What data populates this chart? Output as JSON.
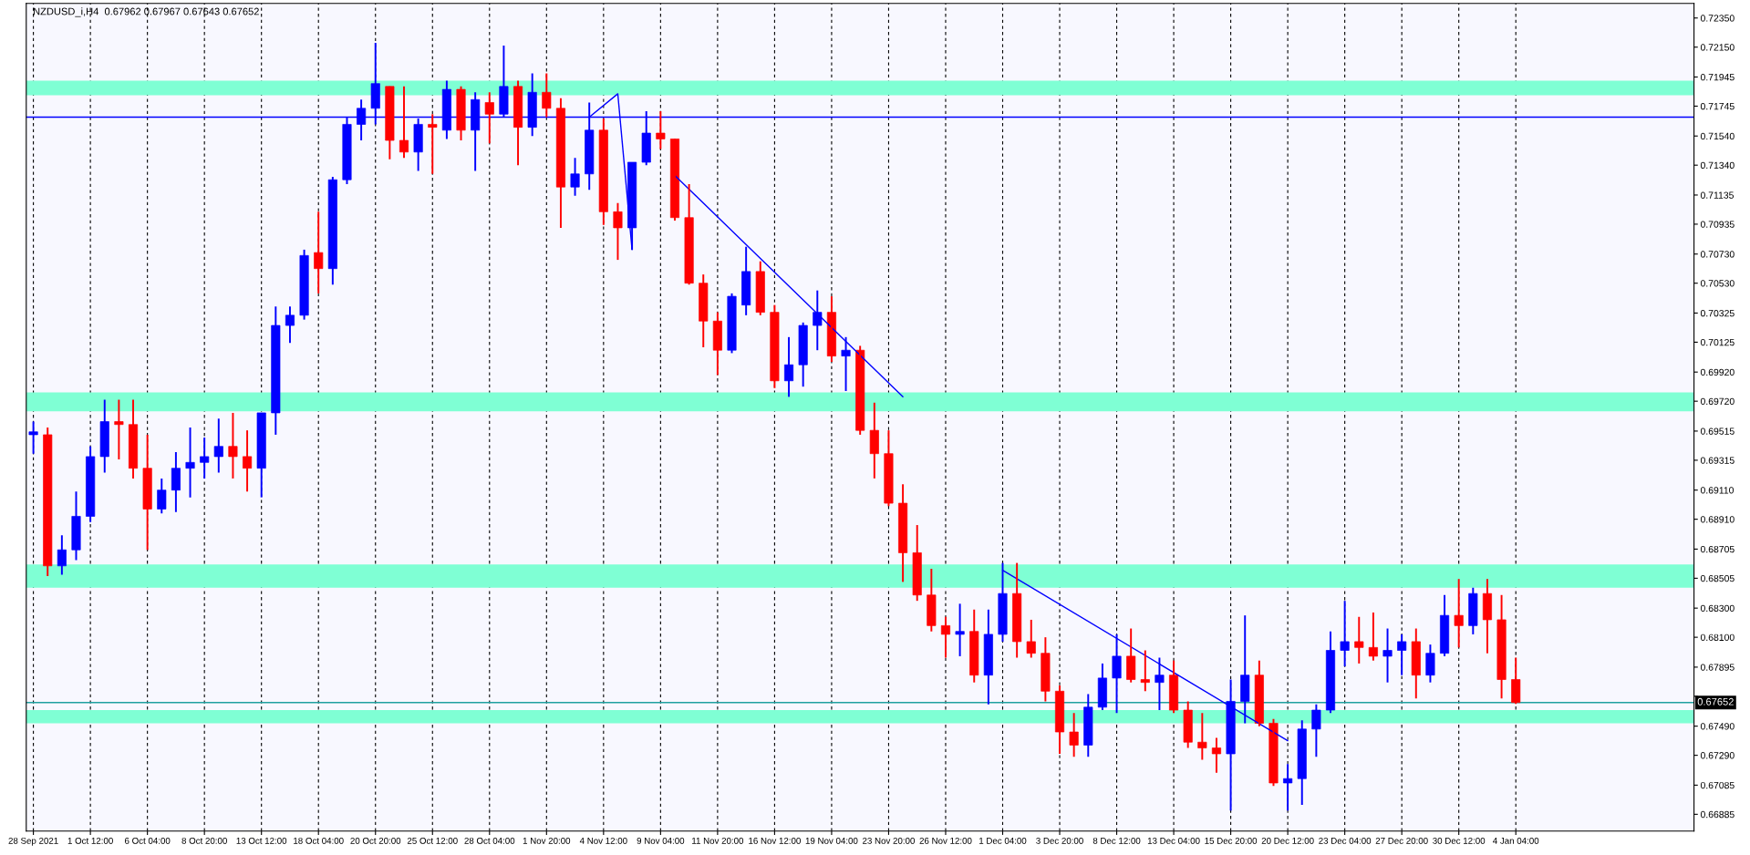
{
  "chart_data": {
    "type": "candlestick",
    "title": "NZDUSD_i,H4  0.67962 0.67967 0.67643 0.67652",
    "categories": [
      "28 Sep 2021",
      null,
      null,
      null,
      "1 Oct 12:00",
      null,
      null,
      null,
      "6 Oct 04:00",
      null,
      null,
      null,
      "8 Oct 20:00",
      null,
      null,
      null,
      "13 Oct 12:00",
      null,
      null,
      null,
      "18 Oct 04:00",
      null,
      null,
      null,
      "20 Oct 20:00",
      null,
      null,
      null,
      "25 Oct 12:00",
      null,
      null,
      null,
      "28 Oct 04:00",
      null,
      null,
      null,
      "1 Nov 20:00",
      null,
      null,
      null,
      "4 Nov 12:00",
      null,
      null,
      null,
      "9 Nov 04:00",
      null,
      null,
      null,
      "11 Nov 20:00",
      null,
      null,
      null,
      "16 Nov 12:00",
      null,
      null,
      null,
      "19 Nov 04:00",
      null,
      null,
      null,
      "23 Nov 20:00",
      null,
      null,
      null,
      "26 Nov 12:00",
      null,
      null,
      null,
      "1 Dec 04:00",
      null,
      null,
      null,
      "3 Dec 20:00",
      null,
      null,
      null,
      "8 Dec 12:00",
      null,
      null,
      null,
      "13 Dec 04:00",
      null,
      null,
      null,
      "15 Dec 20:00",
      null,
      null,
      null,
      "20 Dec 12:00",
      null,
      null,
      null,
      "23 Dec 04:00",
      null,
      null,
      null,
      "27 Dec 20:00",
      null,
      null,
      null,
      "30 Dec 12:00",
      null,
      null,
      null,
      "4 Jan 04:00",
      null,
      null,
      null,
      null,
      null,
      null,
      null,
      null,
      null,
      null,
      null,
      null
    ],
    "ohlc": [
      [
        0.6949,
        0.6958,
        0.6936,
        0.6951
      ],
      [
        0.6949,
        0.6954,
        0.6852,
        0.6859
      ],
      [
        0.6859,
        0.688,
        0.6853,
        0.687
      ],
      [
        0.687,
        0.691,
        0.6863,
        0.6893
      ],
      [
        0.6893,
        0.6941,
        0.6889,
        0.6934
      ],
      [
        0.6934,
        0.6973,
        0.6923,
        0.6958
      ],
      [
        0.6958,
        0.6973,
        0.6932,
        0.6956
      ],
      [
        0.6956,
        0.6973,
        0.6919,
        0.6926
      ],
      [
        0.6926,
        0.6949,
        0.687,
        0.6898
      ],
      [
        0.6898,
        0.6919,
        0.6895,
        0.6911
      ],
      [
        0.6911,
        0.6937,
        0.6896,
        0.6926
      ],
      [
        0.6926,
        0.6954,
        0.6906,
        0.693
      ],
      [
        0.693,
        0.6947,
        0.6919,
        0.6934
      ],
      [
        0.6934,
        0.696,
        0.6923,
        0.6941
      ],
      [
        0.6941,
        0.6964,
        0.6919,
        0.6934
      ],
      [
        0.6934,
        0.6952,
        0.691,
        0.6926
      ],
      [
        0.6926,
        0.6964,
        0.6906,
        0.6964
      ],
      [
        0.6964,
        0.7037,
        0.6949,
        0.7024
      ],
      [
        0.7024,
        0.7037,
        0.7012,
        0.7031
      ],
      [
        0.7031,
        0.7076,
        0.7028,
        0.7072
      ],
      [
        0.7074,
        0.7102,
        0.7046,
        0.7063
      ],
      [
        0.7063,
        0.7126,
        0.7052,
        0.7124
      ],
      [
        0.7124,
        0.7167,
        0.7121,
        0.7162
      ],
      [
        0.7162,
        0.7179,
        0.7151,
        0.7173
      ],
      [
        0.7173,
        0.7218,
        0.7162,
        0.719
      ],
      [
        0.7188,
        0.7188,
        0.7138,
        0.7151
      ],
      [
        0.7151,
        0.7188,
        0.7139,
        0.7143
      ],
      [
        0.7143,
        0.7166,
        0.713,
        0.7162
      ],
      [
        0.7162,
        0.7169,
        0.7128,
        0.716
      ],
      [
        0.7158,
        0.7192,
        0.7152,
        0.7186
      ],
      [
        0.7186,
        0.7188,
        0.7151,
        0.7158
      ],
      [
        0.7158,
        0.7184,
        0.713,
        0.7179
      ],
      [
        0.7177,
        0.7184,
        0.7149,
        0.7169
      ],
      [
        0.7169,
        0.7216,
        0.7167,
        0.7188
      ],
      [
        0.7188,
        0.7192,
        0.7134,
        0.716
      ],
      [
        0.716,
        0.7197,
        0.7154,
        0.7184
      ],
      [
        0.7184,
        0.7197,
        0.7167,
        0.7173
      ],
      [
        0.7173,
        0.718,
        0.7091,
        0.7119
      ],
      [
        0.7119,
        0.7139,
        0.7113,
        0.7128
      ],
      [
        0.7128,
        0.7177,
        0.7117,
        0.7158
      ],
      [
        0.7158,
        0.7166,
        0.7093,
        0.7102
      ],
      [
        0.7102,
        0.7108,
        0.7069,
        0.7091
      ],
      [
        0.7091,
        0.7136,
        0.7076,
        0.7136
      ],
      [
        0.7136,
        0.7171,
        0.7134,
        0.7156
      ],
      [
        0.7156,
        0.7171,
        0.7145,
        0.7152
      ],
      [
        0.7152,
        0.7152,
        0.7096,
        0.7098
      ],
      [
        0.7098,
        0.7121,
        0.7052,
        0.7053
      ],
      [
        0.7053,
        0.7059,
        0.7009,
        0.7027
      ],
      [
        0.7027,
        0.7033,
        0.699,
        0.7007
      ],
      [
        0.7007,
        0.7046,
        0.7005,
        0.7044
      ],
      [
        0.7038,
        0.7078,
        0.7031,
        0.7061
      ],
      [
        0.7061,
        0.7068,
        0.7031,
        0.7033
      ],
      [
        0.7033,
        0.7038,
        0.6981,
        0.6986
      ],
      [
        0.6986,
        0.7016,
        0.6975,
        0.6997
      ],
      [
        0.6997,
        0.7026,
        0.6982,
        0.7024
      ],
      [
        0.7024,
        0.7048,
        0.7007,
        0.7033
      ],
      [
        0.7033,
        0.7044,
        0.6999,
        0.7003
      ],
      [
        0.7003,
        0.7016,
        0.6979,
        0.7007
      ],
      [
        0.7007,
        0.701,
        0.6949,
        0.6952
      ],
      [
        0.6952,
        0.6971,
        0.6919,
        0.6936
      ],
      [
        0.6936,
        0.6952,
        0.69,
        0.6902
      ],
      [
        0.6902,
        0.6915,
        0.6848,
        0.6868
      ],
      [
        0.6868,
        0.6887,
        0.6835,
        0.6839
      ],
      [
        0.6839,
        0.6857,
        0.6814,
        0.6818
      ],
      [
        0.6818,
        0.6824,
        0.6796,
        0.6812
      ],
      [
        0.6812,
        0.6833,
        0.6797,
        0.6814
      ],
      [
        0.6814,
        0.6829,
        0.6779,
        0.6784
      ],
      [
        0.6784,
        0.6829,
        0.6764,
        0.6812
      ],
      [
        0.6812,
        0.6861,
        0.6807,
        0.684
      ],
      [
        0.684,
        0.6861,
        0.6796,
        0.6807
      ],
      [
        0.6807,
        0.6822,
        0.6796,
        0.6799
      ],
      [
        0.6799,
        0.681,
        0.6766,
        0.6773
      ],
      [
        0.6773,
        0.6777,
        0.673,
        0.6745
      ],
      [
        0.6745,
        0.6758,
        0.6728,
        0.6736
      ],
      [
        0.6736,
        0.6771,
        0.6728,
        0.6762
      ],
      [
        0.6762,
        0.6792,
        0.676,
        0.6782
      ],
      [
        0.6782,
        0.6812,
        0.6758,
        0.6797
      ],
      [
        0.6797,
        0.6816,
        0.6779,
        0.6781
      ],
      [
        0.6781,
        0.6801,
        0.6773,
        0.6779
      ],
      [
        0.6779,
        0.6796,
        0.676,
        0.6784
      ],
      [
        0.6784,
        0.6794,
        0.6758,
        0.676
      ],
      [
        0.676,
        0.6766,
        0.6734,
        0.6738
      ],
      [
        0.6738,
        0.6758,
        0.6726,
        0.6734
      ],
      [
        0.6734,
        0.6741,
        0.6717,
        0.673
      ],
      [
        0.673,
        0.6781,
        0.6691,
        0.6766
      ],
      [
        0.6766,
        0.6825,
        0.6751,
        0.6784
      ],
      [
        0.6784,
        0.6794,
        0.6749,
        0.6751
      ],
      [
        0.6751,
        0.6754,
        0.6708,
        0.671
      ],
      [
        0.671,
        0.6723,
        0.6691,
        0.6713
      ],
      [
        0.6713,
        0.6753,
        0.6695,
        0.6747
      ],
      [
        0.6747,
        0.6764,
        0.6728,
        0.676
      ],
      [
        0.676,
        0.6814,
        0.6758,
        0.6801
      ],
      [
        0.6801,
        0.6835,
        0.679,
        0.6807
      ],
      [
        0.6807,
        0.6824,
        0.6792,
        0.6803
      ],
      [
        0.6803,
        0.6827,
        0.6794,
        0.6797
      ],
      [
        0.6797,
        0.6816,
        0.6779,
        0.6801
      ],
      [
        0.6801,
        0.6812,
        0.6784,
        0.6807
      ],
      [
        0.6807,
        0.6816,
        0.6768,
        0.6784
      ],
      [
        0.6784,
        0.6805,
        0.6779,
        0.6799
      ],
      [
        0.6799,
        0.6839,
        0.6797,
        0.6825
      ],
      [
        0.6825,
        0.685,
        0.6803,
        0.6818
      ],
      [
        0.6818,
        0.6844,
        0.6812,
        0.684
      ],
      [
        0.684,
        0.685,
        0.6799,
        0.6822
      ],
      [
        0.6822,
        0.6839,
        0.6768,
        0.6781
      ],
      [
        0.6781,
        0.6796,
        0.67643,
        0.67652
      ],
      null,
      null,
      null,
      null,
      null,
      null,
      null,
      null,
      null,
      null,
      null,
      null
    ],
    "colors": [
      "#0000ff",
      "#ff0000",
      "#0000ff",
      "#0000ff",
      "#0000ff",
      "#0000ff",
      "#ff0000",
      "#ff0000",
      "#ff0000",
      "#0000ff",
      "#0000ff",
      "#0000ff",
      "#0000ff",
      "#0000ff",
      "#ff0000",
      "#ff0000",
      "#0000ff",
      "#0000ff",
      "#0000ff",
      "#0000ff",
      "#ff0000",
      "#0000ff",
      "#0000ff",
      "#0000ff",
      "#0000ff",
      "#ff0000",
      "#ff0000",
      "#0000ff",
      "#ff0000",
      "#0000ff",
      "#ff0000",
      "#0000ff",
      "#ff0000",
      "#0000ff",
      "#ff0000",
      "#0000ff",
      "#ff0000",
      "#ff0000",
      "#0000ff",
      "#0000ff",
      "#ff0000",
      "#ff0000",
      "#0000ff",
      "#0000ff",
      "#ff0000",
      "#ff0000",
      "#ff0000",
      "#ff0000",
      "#ff0000",
      "#0000ff",
      "#0000ff",
      "#ff0000",
      "#ff0000",
      "#0000ff",
      "#0000ff",
      "#0000ff",
      "#ff0000",
      "#0000ff",
      "#ff0000",
      "#ff0000",
      "#ff0000",
      "#ff0000",
      "#ff0000",
      "#ff0000",
      "#ff0000",
      "#0000ff",
      "#ff0000",
      "#0000ff",
      "#0000ff",
      "#ff0000",
      "#ff0000",
      "#ff0000",
      "#ff0000",
      "#ff0000",
      "#0000ff",
      "#0000ff",
      "#0000ff",
      "#ff0000",
      "#ff0000",
      "#0000ff",
      "#ff0000",
      "#ff0000",
      "#ff0000",
      "#ff0000",
      "#0000ff",
      "#0000ff",
      "#ff0000",
      "#ff0000",
      "#0000ff",
      "#0000ff",
      "#0000ff",
      "#0000ff",
      "#0000ff",
      "#ff0000",
      "#ff0000",
      "#0000ff",
      "#0000ff",
      "#ff0000",
      "#0000ff",
      "#0000ff",
      "#ff0000",
      "#0000ff",
      "#ff0000",
      "#ff0000",
      "#ff0000",
      null,
      null,
      null,
      null,
      null,
      null,
      null,
      null,
      null,
      null,
      null,
      null
    ],
    "series": [
      {
        "type": "line",
        "color": "#0000ff",
        "values": [
          null,
          null,
          null,
          null,
          null,
          null,
          null,
          null,
          null,
          null,
          null,
          null,
          null,
          null,
          null,
          null,
          null,
          null,
          null,
          null,
          null,
          null,
          null,
          null,
          null,
          null,
          null,
          null,
          null,
          null,
          null,
          null,
          null,
          null,
          null,
          null,
          null,
          null,
          null,
          0.7167,
          null,
          0.7183,
          0.7076,
          null,
          null,
          null,
          null,
          null,
          null,
          null,
          null,
          null,
          null,
          null,
          null,
          null,
          null,
          null,
          null,
          null,
          null,
          null,
          null,
          null,
          null,
          null,
          null,
          null,
          null,
          null,
          null,
          null,
          null,
          null,
          null,
          null,
          null,
          null,
          null,
          null,
          null,
          null,
          null,
          null,
          null,
          null,
          null,
          null,
          null,
          null,
          null,
          null,
          null,
          null,
          null,
          null,
          null,
          null,
          null,
          null,
          null,
          null,
          null,
          null,
          null,
          null,
          null,
          null,
          null,
          null,
          null,
          null,
          null,
          null,
          null,
          null,
          null
        ]
      },
      {
        "type": "line",
        "color": "#0000ff",
        "values": [
          null,
          null,
          null,
          null,
          null,
          null,
          null,
          null,
          null,
          null,
          null,
          null,
          null,
          null,
          null,
          null,
          null,
          null,
          null,
          null,
          null,
          null,
          null,
          null,
          null,
          null,
          null,
          null,
          null,
          null,
          null,
          null,
          null,
          null,
          null,
          null,
          null,
          null,
          null,
          null,
          null,
          null,
          null,
          null,
          null,
          0.7127,
          null,
          null,
          null,
          null,
          null,
          null,
          null,
          null,
          null,
          null,
          null,
          null,
          null,
          null,
          null,
          0.6975,
          null,
          null,
          null,
          null,
          null,
          null,
          null,
          null,
          null,
          null,
          null,
          null,
          null,
          null,
          null,
          null,
          null,
          null,
          null,
          null,
          null,
          null,
          null,
          null,
          null,
          null,
          null,
          null,
          null,
          null,
          null,
          null,
          null,
          null,
          null,
          null,
          null,
          null,
          null,
          null,
          null,
          null,
          null,
          null,
          null,
          null,
          null,
          null,
          null,
          null,
          null,
          null,
          null,
          null,
          null
        ]
      },
      {
        "type": "line",
        "color": "#0000ff",
        "values": [
          null,
          null,
          null,
          null,
          null,
          null,
          null,
          null,
          null,
          null,
          null,
          null,
          null,
          null,
          null,
          null,
          null,
          null,
          null,
          null,
          null,
          null,
          null,
          null,
          null,
          null,
          null,
          null,
          null,
          null,
          null,
          null,
          null,
          null,
          null,
          null,
          null,
          null,
          null,
          null,
          null,
          null,
          null,
          null,
          null,
          null,
          null,
          null,
          null,
          null,
          null,
          null,
          null,
          null,
          null,
          null,
          null,
          null,
          null,
          null,
          null,
          null,
          null,
          null,
          null,
          null,
          null,
          null,
          0.6856,
          null,
          null,
          null,
          null,
          null,
          null,
          null,
          null,
          null,
          null,
          null,
          null,
          null,
          null,
          null,
          null,
          null,
          null,
          null,
          0.6739,
          null,
          null,
          null,
          null,
          null,
          null,
          null,
          null,
          null,
          null,
          null,
          null,
          null,
          null,
          null,
          null,
          null,
          null,
          null,
          null,
          null,
          null,
          null,
          null,
          null,
          null,
          null,
          null
        ]
      }
    ],
    "ylim": [
      0.6677,
      0.7245
    ],
    "yticks": [
      {
        "value": 0.7235,
        "label": "0.72350"
      },
      {
        "value": 0.7215,
        "label": "0.72150"
      },
      {
        "value": 0.71945,
        "label": "0.71945"
      },
      {
        "value": 0.71745,
        "label": "0.71745"
      },
      {
        "value": 0.7154,
        "label": "0.71540"
      },
      {
        "value": 0.7134,
        "label": "0.71340"
      },
      {
        "value": 0.71135,
        "label": "0.71135"
      },
      {
        "value": 0.70935,
        "label": "0.70935"
      },
      {
        "value": 0.7073,
        "label": "0.70730"
      },
      {
        "value": 0.7053,
        "label": "0.70530"
      },
      {
        "value": 0.70325,
        "label": "0.70325"
      },
      {
        "value": 0.70125,
        "label": "0.70125"
      },
      {
        "value": 0.6992,
        "label": "0.69920"
      },
      {
        "value": 0.6972,
        "label": "0.69720"
      },
      {
        "value": 0.69515,
        "label": "0.69515"
      },
      {
        "value": 0.69315,
        "label": "0.69315"
      },
      {
        "value": 0.6911,
        "label": "0.69110"
      },
      {
        "value": 0.6891,
        "label": "0.68910"
      },
      {
        "value": 0.68705,
        "label": "0.68705"
      },
      {
        "value": 0.68505,
        "label": "0.68505"
      },
      {
        "value": 0.683,
        "label": "0.68300"
      },
      {
        "value": 0.681,
        "label": "0.68100"
      },
      {
        "value": 0.67895,
        "label": "0.67895"
      },
      {
        "value": 0.67695,
        "label": null
      },
      {
        "value": 0.6749,
        "label": "0.67490"
      },
      {
        "value": 0.6729,
        "label": "0.67290"
      },
      {
        "value": 0.67085,
        "label": "0.67085"
      },
      {
        "value": 0.66885,
        "label": "0.66885"
      }
    ],
    "ref_lines": [
      {
        "axis": "y",
        "value": 0.7167,
        "color": "#0000ff"
      },
      {
        "axis": "y",
        "value": 0.67652,
        "label": "0.67652",
        "color": "#20a0a0"
      }
    ],
    "bands": [
      {
        "axis": "y",
        "from": 0.7182,
        "to": 0.7192,
        "color": "#7fffd4"
      },
      {
        "axis": "y",
        "from": 0.6965,
        "to": 0.6978,
        "color": "#7fffd4"
      },
      {
        "axis": "y",
        "from": 0.6844,
        "to": 0.686,
        "color": "#7fffd4"
      },
      {
        "axis": "y",
        "from": 0.6751,
        "to": 0.676,
        "color": "#7fffd4"
      }
    ],
    "grid": "x"
  }
}
